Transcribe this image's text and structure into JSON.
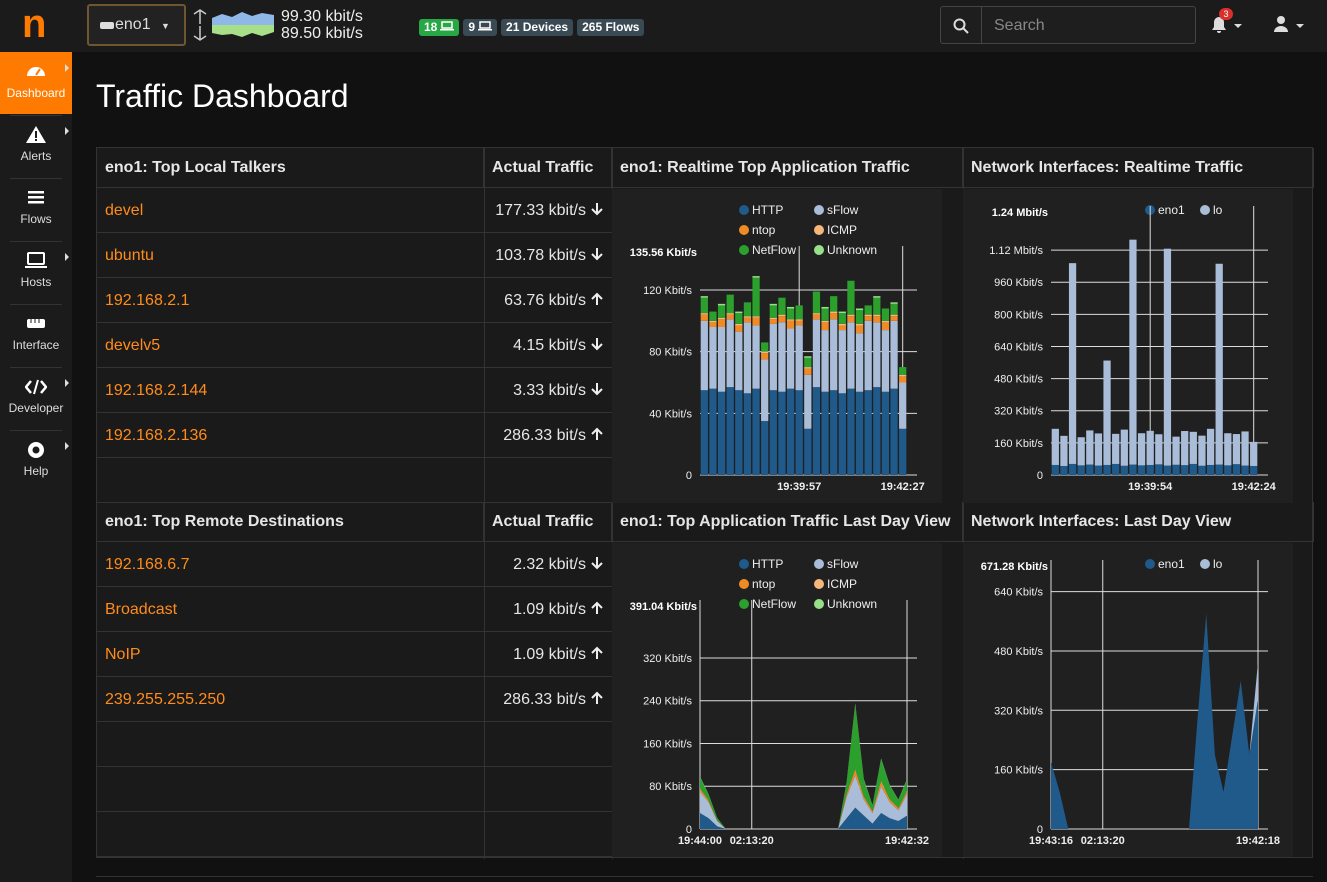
{
  "brand": "n",
  "interface": "eno1",
  "throughput": {
    "up": "99.30 kbit/s",
    "down": "89.50 kbit/s"
  },
  "badges": [
    {
      "text": "18",
      "color": "#28a745"
    },
    {
      "text": "9",
      "color": "#3a4a55"
    },
    {
      "text": "21 Devices",
      "color": "#3a4a55"
    },
    {
      "text": "265 Flows",
      "color": "#3a4a55"
    }
  ],
  "search_placeholder": "Search",
  "notifications": "3",
  "sidebar": [
    "Dashboard",
    "Alerts",
    "Flows",
    "Hosts",
    "Interface",
    "Developer",
    "Help"
  ],
  "title": "Traffic Dashboard",
  "local_talkers": {
    "title": "eno1: Top Local Talkers",
    "column": "Actual Traffic",
    "rows": [
      {
        "name": "devel",
        "traffic": "177.33 kbit/s",
        "dir": "down"
      },
      {
        "name": "ubuntu",
        "traffic": "103.78 kbit/s",
        "dir": "down"
      },
      {
        "name": "192.168.2.1",
        "traffic": "63.76 kbit/s",
        "dir": "up"
      },
      {
        "name": "develv5",
        "traffic": "4.15 kbit/s",
        "dir": "down"
      },
      {
        "name": "192.168.2.144",
        "traffic": "3.33 kbit/s",
        "dir": "down"
      },
      {
        "name": "192.168.2.136",
        "traffic": "286.33 bit/s",
        "dir": "up"
      }
    ]
  },
  "remote_destinations": {
    "title": "eno1: Top Remote Destinations",
    "column": "Actual Traffic",
    "rows": [
      {
        "name": "192.168.6.7",
        "traffic": "2.32 kbit/s",
        "dir": "down"
      },
      {
        "name": "Broadcast",
        "traffic": "1.09 kbit/s",
        "dir": "up"
      },
      {
        "name": "NoIP",
        "traffic": "1.09 kbit/s",
        "dir": "up"
      },
      {
        "name": "239.255.255.250",
        "traffic": "286.33 bit/s",
        "dir": "up"
      }
    ]
  },
  "charts": [
    {
      "title": "eno1: Realtime Top Application Traffic",
      "type": "stacked-bar",
      "categories": [
        null,
        null,
        null,
        null,
        null,
        null,
        null,
        null,
        null,
        null,
        null,
        "19:39:57",
        null,
        null,
        null,
        null,
        null,
        null,
        null,
        null,
        null,
        null,
        null,
        "19:42:27"
      ],
      "series": [
        {
          "name": "HTTP",
          "color": "#1f5a8a",
          "values": [
            55,
            56,
            54,
            57,
            55,
            53,
            56,
            35,
            55,
            54,
            56,
            55,
            30,
            57,
            54,
            55,
            53,
            56,
            54,
            55,
            57,
            54,
            56,
            30
          ]
        },
        {
          "name": "sFlow",
          "color": "#a9bcd8",
          "values": [
            45,
            40,
            42,
            44,
            38,
            46,
            41,
            40,
            43,
            45,
            39,
            42,
            35,
            44,
            40,
            46,
            41,
            43,
            38,
            45,
            42,
            40,
            44,
            30
          ]
        },
        {
          "name": "ntop",
          "color": "#f08a24",
          "values": [
            4,
            3,
            5,
            3,
            4,
            3,
            5,
            4,
            3,
            4,
            5,
            3,
            4,
            3,
            5,
            4,
            3,
            4,
            5,
            3,
            4,
            5,
            3,
            4
          ]
        },
        {
          "name": "ICMP",
          "color": "#f7b77a",
          "values": [
            1,
            1,
            1,
            1,
            1,
            1,
            1,
            1,
            1,
            1,
            1,
            1,
            1,
            1,
            1,
            1,
            1,
            1,
            1,
            1,
            1,
            1,
            1,
            1
          ]
        },
        {
          "name": "NetFlow",
          "color": "#2ca02c",
          "values": [
            10,
            6,
            8,
            12,
            7,
            9,
            25,
            6,
            8,
            11,
            7,
            9,
            6,
            14,
            8,
            10,
            7,
            22,
            9,
            6,
            11,
            8,
            7,
            5
          ]
        },
        {
          "name": "Unknown",
          "color": "#98df8a",
          "values": [
            1,
            0,
            1,
            0,
            1,
            0,
            1,
            0,
            1,
            0,
            1,
            0,
            1,
            0,
            1,
            0,
            1,
            0,
            1,
            0,
            1,
            0,
            1,
            0
          ]
        }
      ],
      "ylim": [
        0,
        135.56
      ],
      "top_label": "135.56 Kbit/s",
      "yticks": [
        0,
        {
          "value": 40,
          "label": "40 Kbit/s"
        },
        {
          "value": 80,
          "label": "80 Kbit/s"
        },
        {
          "value": 120,
          "label": "120 Kbit/s"
        }
      ]
    },
    {
      "title": "Network Interfaces: Realtime Traffic",
      "type": "stacked-bar",
      "categories": [
        null,
        null,
        null,
        null,
        null,
        null,
        null,
        null,
        null,
        null,
        null,
        "19:39:54",
        null,
        null,
        null,
        null,
        null,
        null,
        null,
        null,
        null,
        null,
        null,
        "19:42:24"
      ],
      "series": [
        {
          "name": "eno1",
          "color": "#1f5a8a",
          "values": [
            50,
            45,
            55,
            48,
            52,
            47,
            50,
            55,
            46,
            52,
            48,
            50,
            53,
            47,
            51,
            49,
            55,
            46,
            50,
            52,
            48,
            54,
            47,
            45
          ]
        },
        {
          "name": "lo",
          "color": "#a9bcd8",
          "values": [
            180,
            150,
            1000,
            140,
            170,
            160,
            520,
            150,
            180,
            1120,
            160,
            170,
            150,
            1080,
            140,
            170,
            160,
            150,
            180,
            1000,
            160,
            150,
            170,
            120
          ]
        }
      ],
      "ylim": [
        0,
        1240
      ],
      "top_label": "1.24 Mbit/s",
      "yticks": [
        0,
        {
          "value": 160,
          "label": "160 Kbit/s"
        },
        {
          "value": 320,
          "label": "320 Kbit/s"
        },
        {
          "value": 480,
          "label": "480 Kbit/s"
        },
        {
          "value": 640,
          "label": "640 Kbit/s"
        },
        {
          "value": 800,
          "label": "800 Kbit/s"
        },
        {
          "value": 960,
          "label": "960 Kbit/s"
        },
        {
          "value": 1120,
          "label": "1.12 Mbit/s"
        }
      ]
    },
    {
      "title": "eno1: Top Application Traffic Last Day View",
      "type": "stacked-area",
      "categories": [
        "19:44:00",
        null,
        null,
        null,
        null,
        null,
        "02:13:20",
        null,
        null,
        null,
        null,
        null,
        null,
        null,
        null,
        null,
        null,
        null,
        null,
        null,
        null,
        null,
        null,
        null,
        "19:42:32"
      ],
      "series": [
        {
          "name": "HTTP",
          "color": "#1f5a8a",
          "values": [
            30,
            20,
            5,
            0,
            0,
            0,
            0,
            0,
            0,
            0,
            0,
            0,
            0,
            0,
            0,
            0,
            0,
            20,
            40,
            25,
            10,
            30,
            20,
            15,
            25
          ]
        },
        {
          "name": "sFlow",
          "color": "#a9bcd8",
          "values": [
            40,
            30,
            10,
            0,
            0,
            0,
            0,
            0,
            0,
            0,
            0,
            0,
            0,
            0,
            0,
            0,
            0,
            40,
            60,
            30,
            20,
            50,
            30,
            20,
            40
          ]
        },
        {
          "name": "ntop",
          "color": "#f08a24",
          "values": [
            5,
            3,
            1,
            0,
            0,
            0,
            0,
            0,
            0,
            0,
            0,
            0,
            0,
            0,
            0,
            0,
            0,
            5,
            10,
            5,
            3,
            8,
            5,
            3,
            5
          ]
        },
        {
          "name": "ICMP",
          "color": "#f7b77a",
          "values": [
            1,
            1,
            0,
            0,
            0,
            0,
            0,
            0,
            0,
            0,
            0,
            0,
            0,
            0,
            0,
            0,
            0,
            1,
            2,
            1,
            1,
            2,
            1,
            1,
            1
          ]
        },
        {
          "name": "NetFlow",
          "color": "#2ca02c",
          "values": [
            20,
            10,
            5,
            0,
            0,
            0,
            0,
            0,
            0,
            0,
            0,
            0,
            0,
            0,
            0,
            0,
            0,
            20,
            120,
            30,
            10,
            40,
            25,
            15,
            20
          ]
        },
        {
          "name": "Unknown",
          "color": "#98df8a",
          "values": [
            2,
            1,
            0,
            0,
            0,
            0,
            0,
            0,
            0,
            0,
            0,
            0,
            0,
            0,
            0,
            0,
            0,
            2,
            3,
            2,
            1,
            2,
            1,
            1,
            2
          ]
        }
      ],
      "ylim": [
        0,
        391.04
      ],
      "top_label": "391.04 Kbit/s",
      "yticks": [
        0,
        {
          "value": 80,
          "label": "80 Kbit/s"
        },
        {
          "value": 160,
          "label": "160 Kbit/s"
        },
        {
          "value": 240,
          "label": "240 Kbit/s"
        },
        {
          "value": 320,
          "label": "320 Kbit/s"
        }
      ]
    },
    {
      "title": "Network Interfaces: Last Day View",
      "type": "stacked-area",
      "categories": [
        "19:43:16",
        null,
        null,
        null,
        null,
        null,
        "02:13:20",
        null,
        null,
        null,
        null,
        null,
        null,
        null,
        null,
        null,
        null,
        null,
        null,
        null,
        null,
        null,
        null,
        null,
        "19:42:18"
      ],
      "series": [
        {
          "name": "eno1",
          "color": "#1f5a8a",
          "values": [
            180,
            100,
            0,
            0,
            0,
            0,
            0,
            0,
            0,
            0,
            0,
            0,
            0,
            0,
            0,
            0,
            0,
            300,
            580,
            200,
            100,
            250,
            400,
            200,
            350
          ]
        },
        {
          "name": "lo",
          "color": "#a9bcd8",
          "values": [
            0,
            0,
            0,
            0,
            0,
            0,
            0,
            0,
            0,
            0,
            0,
            0,
            0,
            0,
            0,
            0,
            0,
            0,
            0,
            0,
            0,
            0,
            0,
            0,
            100
          ]
        }
      ],
      "ylim": [
        0,
        671.28
      ],
      "top_label": "671.28 Kbit/s",
      "yticks": [
        0,
        {
          "value": 160,
          "label": "160 Kbit/s"
        },
        {
          "value": 320,
          "label": "320 Kbit/s"
        },
        {
          "value": 480,
          "label": "480 Kbit/s"
        },
        {
          "value": 640,
          "label": "640 Kbit/s"
        }
      ]
    }
  ]
}
